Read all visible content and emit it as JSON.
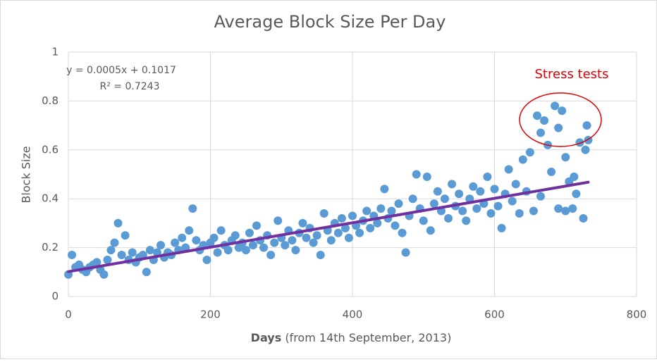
{
  "chart_data": {
    "type": "scatter",
    "title": "Average Block Size Per Day",
    "y_label": "Block Size",
    "x_label_bold": "Days",
    "x_label": "(from 14th September, 2013)",
    "equation": "y = 0.0005x + 0.1017",
    "r_squared": "R² = 0.7243",
    "annotation": "Stress tests",
    "xlim": [
      0,
      800
    ],
    "ylim": [
      0,
      1
    ],
    "xticks": [
      0,
      200,
      400,
      600,
      800
    ],
    "yticks": [
      0,
      0.2,
      0.4,
      0.6,
      0.8,
      1
    ],
    "grid": true,
    "series": [
      {
        "name": "Block Size",
        "color": "#5b9bd5",
        "x": [
          0,
          5,
          10,
          15,
          20,
          25,
          30,
          35,
          40,
          45,
          50,
          55,
          60,
          65,
          70,
          75,
          80,
          85,
          90,
          95,
          100,
          105,
          110,
          115,
          120,
          125,
          130,
          135,
          140,
          145,
          150,
          155,
          160,
          165,
          170,
          175,
          180,
          185,
          190,
          195,
          200,
          205,
          210,
          215,
          220,
          225,
          230,
          235,
          240,
          245,
          250,
          255,
          260,
          265,
          270,
          275,
          280,
          285,
          290,
          295,
          300,
          305,
          310,
          315,
          320,
          325,
          330,
          335,
          340,
          345,
          350,
          355,
          360,
          365,
          370,
          375,
          380,
          385,
          390,
          395,
          400,
          405,
          410,
          415,
          420,
          425,
          430,
          435,
          440,
          445,
          450,
          455,
          460,
          465,
          470,
          475,
          480,
          485,
          490,
          495,
          500,
          505,
          510,
          515,
          520,
          525,
          530,
          535,
          540,
          545,
          550,
          555,
          560,
          565,
          570,
          575,
          580,
          585,
          590,
          595,
          600,
          605,
          610,
          615,
          620,
          625,
          630,
          635,
          640,
          645,
          650,
          655,
          660,
          665,
          670,
          675,
          680,
          685,
          690,
          695,
          700,
          705,
          710,
          715,
          720,
          725,
          730,
          665,
          690,
          700,
          712,
          728,
          732
        ],
        "values": [
          0.09,
          0.17,
          0.12,
          0.13,
          0.11,
          0.1,
          0.12,
          0.13,
          0.14,
          0.11,
          0.09,
          0.15,
          0.19,
          0.22,
          0.3,
          0.17,
          0.25,
          0.15,
          0.18,
          0.14,
          0.16,
          0.17,
          0.1,
          0.19,
          0.15,
          0.18,
          0.21,
          0.16,
          0.18,
          0.17,
          0.22,
          0.19,
          0.24,
          0.2,
          0.27,
          0.36,
          0.23,
          0.19,
          0.21,
          0.15,
          0.22,
          0.24,
          0.18,
          0.27,
          0.21,
          0.19,
          0.23,
          0.25,
          0.2,
          0.22,
          0.19,
          0.26,
          0.21,
          0.29,
          0.23,
          0.2,
          0.25,
          0.17,
          0.22,
          0.31,
          0.24,
          0.21,
          0.27,
          0.23,
          0.19,
          0.26,
          0.3,
          0.24,
          0.28,
          0.22,
          0.25,
          0.17,
          0.34,
          0.27,
          0.23,
          0.3,
          0.26,
          0.32,
          0.28,
          0.24,
          0.33,
          0.29,
          0.26,
          0.31,
          0.35,
          0.28,
          0.33,
          0.3,
          0.36,
          0.44,
          0.32,
          0.35,
          0.29,
          0.38,
          0.26,
          0.18,
          0.33,
          0.4,
          0.5,
          0.36,
          0.31,
          0.49,
          0.27,
          0.38,
          0.43,
          0.35,
          0.4,
          0.32,
          0.46,
          0.37,
          0.42,
          0.35,
          0.31,
          0.4,
          0.45,
          0.36,
          0.43,
          0.38,
          0.49,
          0.34,
          0.44,
          0.37,
          0.28,
          0.42,
          0.52,
          0.39,
          0.46,
          0.34,
          0.56,
          0.43,
          0.59,
          0.35,
          0.74,
          0.67,
          0.72,
          0.62,
          0.51,
          0.78,
          0.69,
          0.76,
          0.57,
          0.47,
          0.36,
          0.42,
          0.63,
          0.32,
          0.7,
          0.41,
          0.36,
          0.35,
          0.49,
          0.6,
          0.64
        ]
      }
    ],
    "trendline": {
      "slope": 0.0005,
      "intercept": 0.1017,
      "x": [
        0,
        732
      ],
      "color": "#7030a0"
    }
  }
}
